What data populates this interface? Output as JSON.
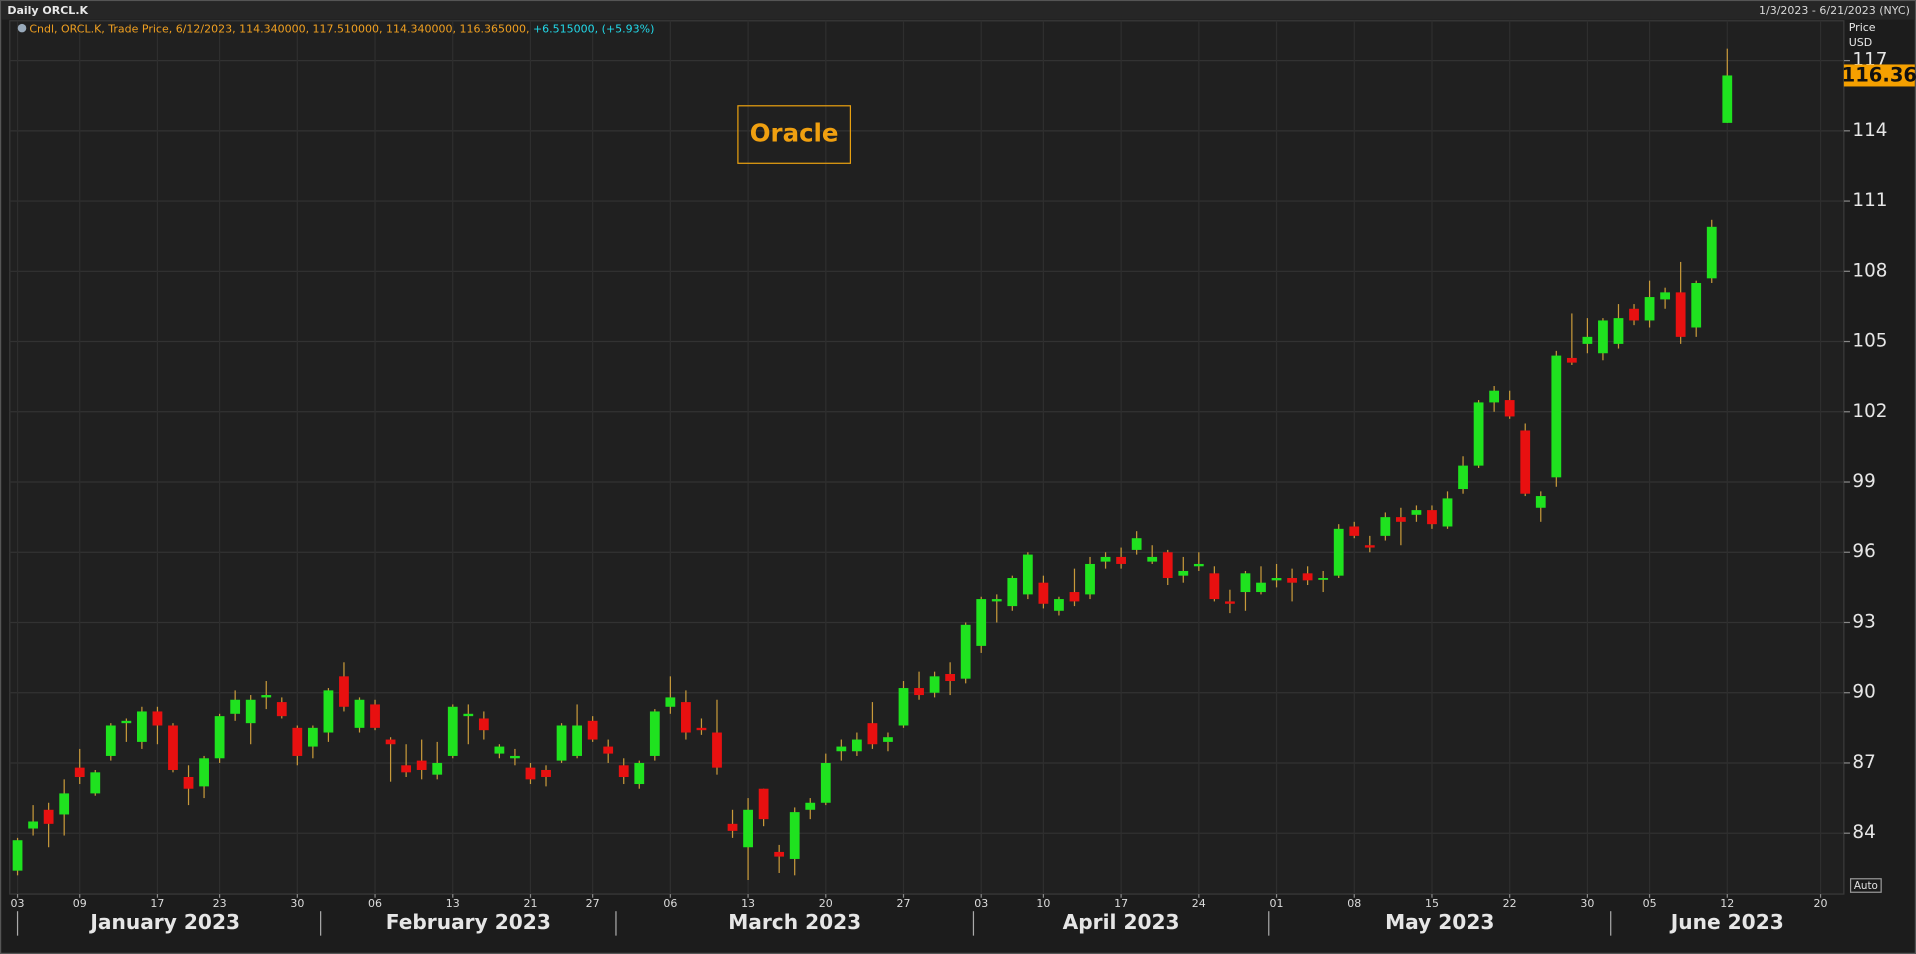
{
  "chart_data": {
    "type": "candlestick",
    "title": "Daily ORCL.K",
    "subtitle": "1/3/2023 - 6/21/2023 (NYC)",
    "legend": {
      "text": "Cndl, ORCL.K, Trade Price, 6/12/2023, 114.340000, 117.510000, 114.340000, 116.365000, ",
      "change": "+6.515000, (+5.93%)"
    },
    "annotation": "Oracle",
    "y_axis_label": [
      "Price",
      "USD"
    ],
    "scale_button": "Auto",
    "last_price_label": "116.36",
    "x": [
      "2023-01-03",
      "2023-01-04",
      "2023-01-05",
      "2023-01-06",
      "2023-01-09",
      "2023-01-10",
      "2023-01-11",
      "2023-01-12",
      "2023-01-13",
      "2023-01-17",
      "2023-01-18",
      "2023-01-19",
      "2023-01-20",
      "2023-01-23",
      "2023-01-24",
      "2023-01-25",
      "2023-01-26",
      "2023-01-27",
      "2023-01-30",
      "2023-01-31",
      "2023-02-01",
      "2023-02-02",
      "2023-02-03",
      "2023-02-06",
      "2023-02-07",
      "2023-02-08",
      "2023-02-09",
      "2023-02-10",
      "2023-02-13",
      "2023-02-14",
      "2023-02-15",
      "2023-02-16",
      "2023-02-17",
      "2023-02-21",
      "2023-02-22",
      "2023-02-23",
      "2023-02-24",
      "2023-02-27",
      "2023-02-28",
      "2023-03-01",
      "2023-03-02",
      "2023-03-03",
      "2023-03-06",
      "2023-03-07",
      "2023-03-08",
      "2023-03-09",
      "2023-03-10",
      "2023-03-13",
      "2023-03-14",
      "2023-03-15",
      "2023-03-16",
      "2023-03-17",
      "2023-03-20",
      "2023-03-21",
      "2023-03-22",
      "2023-03-23",
      "2023-03-24",
      "2023-03-27",
      "2023-03-28",
      "2023-03-29",
      "2023-03-30",
      "2023-03-31",
      "2023-04-03",
      "2023-04-04",
      "2023-04-05",
      "2023-04-06",
      "2023-04-10",
      "2023-04-11",
      "2023-04-12",
      "2023-04-13",
      "2023-04-14",
      "2023-04-17",
      "2023-04-18",
      "2023-04-19",
      "2023-04-20",
      "2023-04-21",
      "2023-04-24",
      "2023-04-25",
      "2023-04-26",
      "2023-04-27",
      "2023-04-28",
      "2023-05-01",
      "2023-05-02",
      "2023-05-03",
      "2023-05-04",
      "2023-05-05",
      "2023-05-08",
      "2023-05-09",
      "2023-05-10",
      "2023-05-11",
      "2023-05-12",
      "2023-05-15",
      "2023-05-16",
      "2023-05-17",
      "2023-05-18",
      "2023-05-19",
      "2023-05-22",
      "2023-05-23",
      "2023-05-24",
      "2023-05-25",
      "2023-05-26",
      "2023-05-30",
      "2023-05-31",
      "2023-06-01",
      "2023-06-02",
      "2023-06-05",
      "2023-06-06",
      "2023-06-07",
      "2023-06-08",
      "2023-06-09",
      "2023-06-12"
    ],
    "open": [
      82.4,
      84.2,
      85.0,
      84.8,
      86.8,
      85.7,
      87.3,
      88.7,
      87.9,
      89.2,
      88.6,
      86.4,
      86.0,
      87.2,
      89.1,
      88.7,
      89.8,
      89.6,
      88.5,
      87.7,
      88.3,
      90.7,
      88.5,
      89.5,
      88.0,
      86.9,
      87.1,
      86.5,
      87.3,
      89.0,
      88.9,
      87.4,
      87.2,
      86.8,
      86.7,
      87.1,
      87.3,
      88.8,
      87.7,
      86.9,
      86.1,
      87.3,
      89.4,
      89.6,
      88.5,
      88.3,
      84.4,
      83.4,
      85.9,
      83.2,
      82.9,
      85.0,
      85.3,
      87.5,
      87.5,
      88.7,
      87.9,
      88.6,
      90.2,
      90.0,
      90.8,
      90.6,
      92.0,
      93.9,
      93.7,
      94.2,
      94.7,
      93.5,
      94.3,
      94.2,
      95.6,
      95.8,
      96.1,
      95.6,
      96.0,
      95.0,
      95.4,
      95.1,
      93.9,
      94.3,
      94.3,
      94.8,
      94.9,
      95.1,
      94.85,
      95.0,
      97.1,
      96.3,
      96.7,
      97.5,
      97.6,
      97.8,
      97.1,
      98.7,
      99.7,
      102.4,
      102.5,
      101.2,
      97.9,
      99.2,
      104.3,
      104.9,
      104.5,
      104.9,
      106.4,
      105.9,
      106.8,
      107.1,
      105.6,
      107.7,
      114.34
    ],
    "high": [
      83.8,
      85.2,
      85.3,
      86.3,
      87.6,
      86.7,
      88.7,
      88.9,
      89.4,
      89.4,
      88.7,
      86.9,
      87.3,
      89.1,
      90.1,
      89.9,
      90.5,
      89.8,
      88.6,
      88.6,
      90.2,
      91.3,
      89.8,
      89.7,
      88.1,
      87.8,
      88.0,
      87.9,
      89.5,
      89.5,
      89.2,
      87.8,
      87.6,
      87.0,
      86.9,
      88.7,
      89.5,
      89.0,
      88.0,
      87.2,
      87.1,
      89.3,
      90.7,
      90.1,
      88.9,
      89.7,
      85.0,
      85.5,
      85.9,
      83.5,
      85.1,
      85.5,
      87.4,
      88.0,
      88.3,
      89.6,
      88.3,
      90.5,
      90.9,
      90.9,
      91.3,
      93.0,
      94.1,
      94.2,
      95.0,
      96.0,
      95.0,
      94.1,
      95.3,
      95.8,
      96.0,
      96.2,
      96.9,
      96.3,
      96.1,
      95.8,
      96.0,
      95.4,
      94.4,
      95.2,
      95.4,
      95.5,
      95.3,
      95.4,
      95.2,
      97.2,
      97.3,
      96.7,
      97.7,
      97.9,
      98.0,
      98.0,
      98.6,
      100.1,
      102.5,
      103.1,
      102.9,
      101.5,
      98.6,
      104.6,
      106.2,
      106.0,
      106.0,
      106.6,
      106.6,
      107.6,
      107.3,
      108.4,
      107.6,
      110.2,
      117.51
    ],
    "low": [
      82.2,
      83.9,
      83.4,
      83.9,
      86.1,
      85.6,
      87.1,
      87.9,
      87.6,
      87.8,
      86.6,
      85.2,
      85.5,
      87.0,
      88.8,
      87.8,
      89.3,
      88.9,
      86.9,
      87.2,
      87.9,
      89.2,
      88.3,
      88.4,
      86.2,
      86.4,
      86.3,
      86.3,
      87.2,
      87.8,
      88.0,
      87.2,
      86.9,
      86.1,
      86.0,
      87.0,
      87.2,
      87.9,
      87.0,
      86.1,
      85.9,
      87.1,
      89.1,
      88.0,
      88.2,
      86.5,
      83.8,
      82.0,
      84.3,
      82.3,
      82.2,
      84.6,
      85.2,
      87.1,
      87.3,
      87.6,
      87.5,
      88.5,
      89.7,
      89.8,
      89.9,
      90.4,
      91.7,
      93.0,
      93.5,
      94.0,
      93.6,
      93.3,
      93.7,
      94.0,
      95.3,
      95.3,
      95.9,
      95.5,
      94.6,
      94.7,
      95.2,
      93.9,
      93.4,
      93.5,
      94.2,
      94.5,
      93.9,
      94.6,
      94.3,
      94.9,
      96.6,
      96.0,
      96.5,
      96.3,
      97.3,
      97.0,
      97.0,
      98.5,
      99.6,
      102.0,
      101.7,
      98.4,
      97.3,
      98.8,
      104.0,
      104.5,
      104.2,
      104.7,
      105.7,
      105.6,
      106.4,
      104.9,
      105.2,
      107.5,
      114.34
    ],
    "close": [
      83.7,
      84.5,
      84.4,
      85.7,
      86.4,
      86.6,
      88.6,
      88.8,
      89.2,
      88.6,
      86.7,
      85.9,
      87.2,
      89.0,
      89.7,
      89.7,
      89.9,
      89.0,
      87.3,
      88.5,
      90.1,
      89.4,
      89.7,
      88.5,
      87.8,
      86.6,
      86.7,
      87.0,
      89.4,
      89.1,
      88.4,
      87.7,
      87.3,
      86.3,
      86.4,
      88.6,
      88.6,
      88.0,
      87.4,
      86.4,
      87.0,
      89.2,
      89.8,
      88.3,
      88.4,
      86.8,
      84.1,
      85.0,
      84.6,
      83.0,
      84.9,
      85.3,
      87.0,
      87.7,
      88.0,
      87.8,
      88.1,
      90.2,
      89.9,
      90.7,
      90.5,
      92.9,
      94.0,
      94.0,
      94.9,
      95.9,
      93.8,
      94.0,
      93.9,
      95.5,
      95.8,
      95.5,
      96.6,
      95.8,
      94.9,
      95.2,
      95.5,
      94.0,
      93.8,
      95.1,
      94.7,
      94.9,
      94.7,
      94.8,
      94.9,
      97.0,
      96.7,
      96.2,
      97.5,
      97.3,
      97.8,
      97.2,
      98.3,
      99.7,
      102.4,
      102.9,
      101.8,
      98.5,
      98.4,
      104.4,
      104.1,
      105.2,
      105.9,
      106.0,
      105.9,
      106.9,
      107.1,
      105.2,
      107.5,
      109.9,
      116.365
    ],
    "up_color": "#1fe21f",
    "down_color": "#e81010",
    "wick_color": "#c89a3a",
    "xlim": [
      "2023-01-03",
      "2023-06-21"
    ],
    "xticks": [
      {
        "value": "2023-01-03",
        "label": "03"
      },
      {
        "value": "2023-01-09",
        "label": "09"
      },
      {
        "value": "2023-01-17",
        "label": "17"
      },
      {
        "value": "2023-01-23",
        "label": "23"
      },
      {
        "value": "2023-01-30",
        "label": "30"
      },
      {
        "value": "2023-02-06",
        "label": "06"
      },
      {
        "value": "2023-02-13",
        "label": "13"
      },
      {
        "value": "2023-02-21",
        "label": "21"
      },
      {
        "value": "2023-02-27",
        "label": "27"
      },
      {
        "value": "2023-03-06",
        "label": "06"
      },
      {
        "value": "2023-03-13",
        "label": "13"
      },
      {
        "value": "2023-03-20",
        "label": "20"
      },
      {
        "value": "2023-03-27",
        "label": "27"
      },
      {
        "value": "2023-04-03",
        "label": "03"
      },
      {
        "value": "2023-04-10",
        "label": "10"
      },
      {
        "value": "2023-04-17",
        "label": "17"
      },
      {
        "value": "2023-04-24",
        "label": "24"
      },
      {
        "value": "2023-05-01",
        "label": "01"
      },
      {
        "value": "2023-05-08",
        "label": "08"
      },
      {
        "value": "2023-05-15",
        "label": "15"
      },
      {
        "value": "2023-05-22",
        "label": "22"
      },
      {
        "value": "2023-05-30",
        "label": "30"
      },
      {
        "value": "2023-06-05",
        "label": "05"
      },
      {
        "value": "2023-06-12",
        "label": "12"
      },
      {
        "value": "2023-06-20",
        "label": "20"
      }
    ],
    "months": [
      "January 2023",
      "February 2023",
      "March 2023",
      "April 2023",
      "May 2023",
      "June 2023"
    ],
    "ylim": [
      81.4,
      118.7
    ],
    "yticks": [
      84,
      87,
      90,
      93,
      96,
      99,
      102,
      105,
      108,
      111,
      114,
      117
    ],
    "grid": true
  }
}
